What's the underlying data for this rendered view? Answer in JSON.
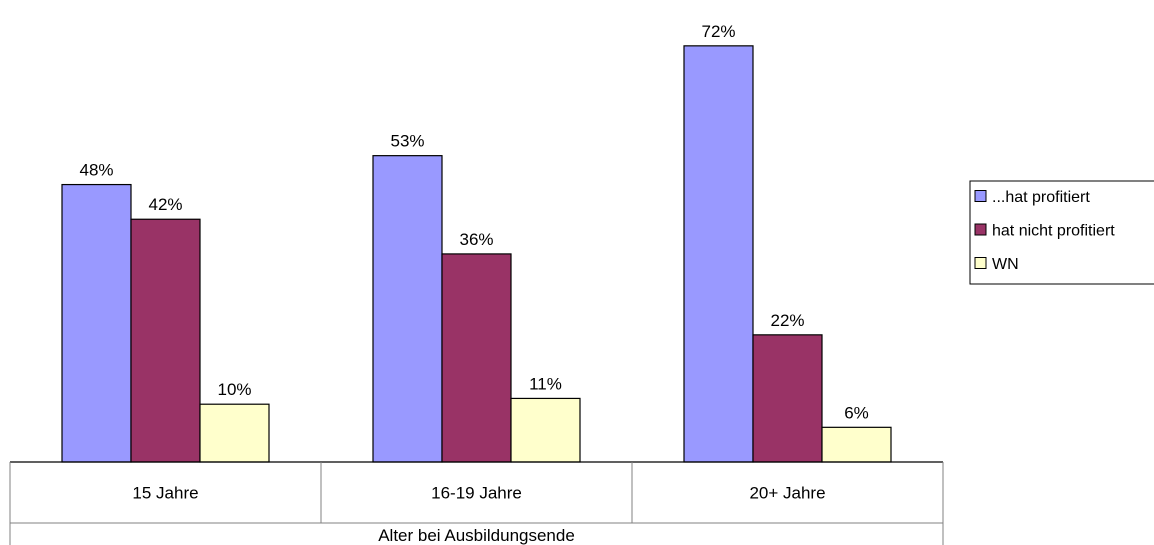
{
  "chart_data": {
    "type": "bar",
    "categories": [
      "15 Jahre",
      "16-19 Jahre",
      "20+ Jahre"
    ],
    "series": [
      {
        "name": "...hat profitiert",
        "color": "#9999ff",
        "values": [
          48,
          53,
          72
        ],
        "labels": [
          "48%",
          "53%",
          "72%"
        ]
      },
      {
        "name": "hat nicht profitiert",
        "color": "#993366",
        "values": [
          42,
          36,
          22
        ],
        "labels": [
          "42%",
          "36%",
          "22%"
        ]
      },
      {
        "name": "WN",
        "color": "#ffffcc",
        "values": [
          10,
          11,
          6
        ],
        "labels": [
          "10%",
          "11%",
          "6%"
        ]
      }
    ],
    "title": "",
    "xlabel": "Alter bei Ausbildungsende",
    "ylabel": "",
    "ylim": [
      0,
      80
    ],
    "grid": false,
    "legend_position": "right"
  }
}
